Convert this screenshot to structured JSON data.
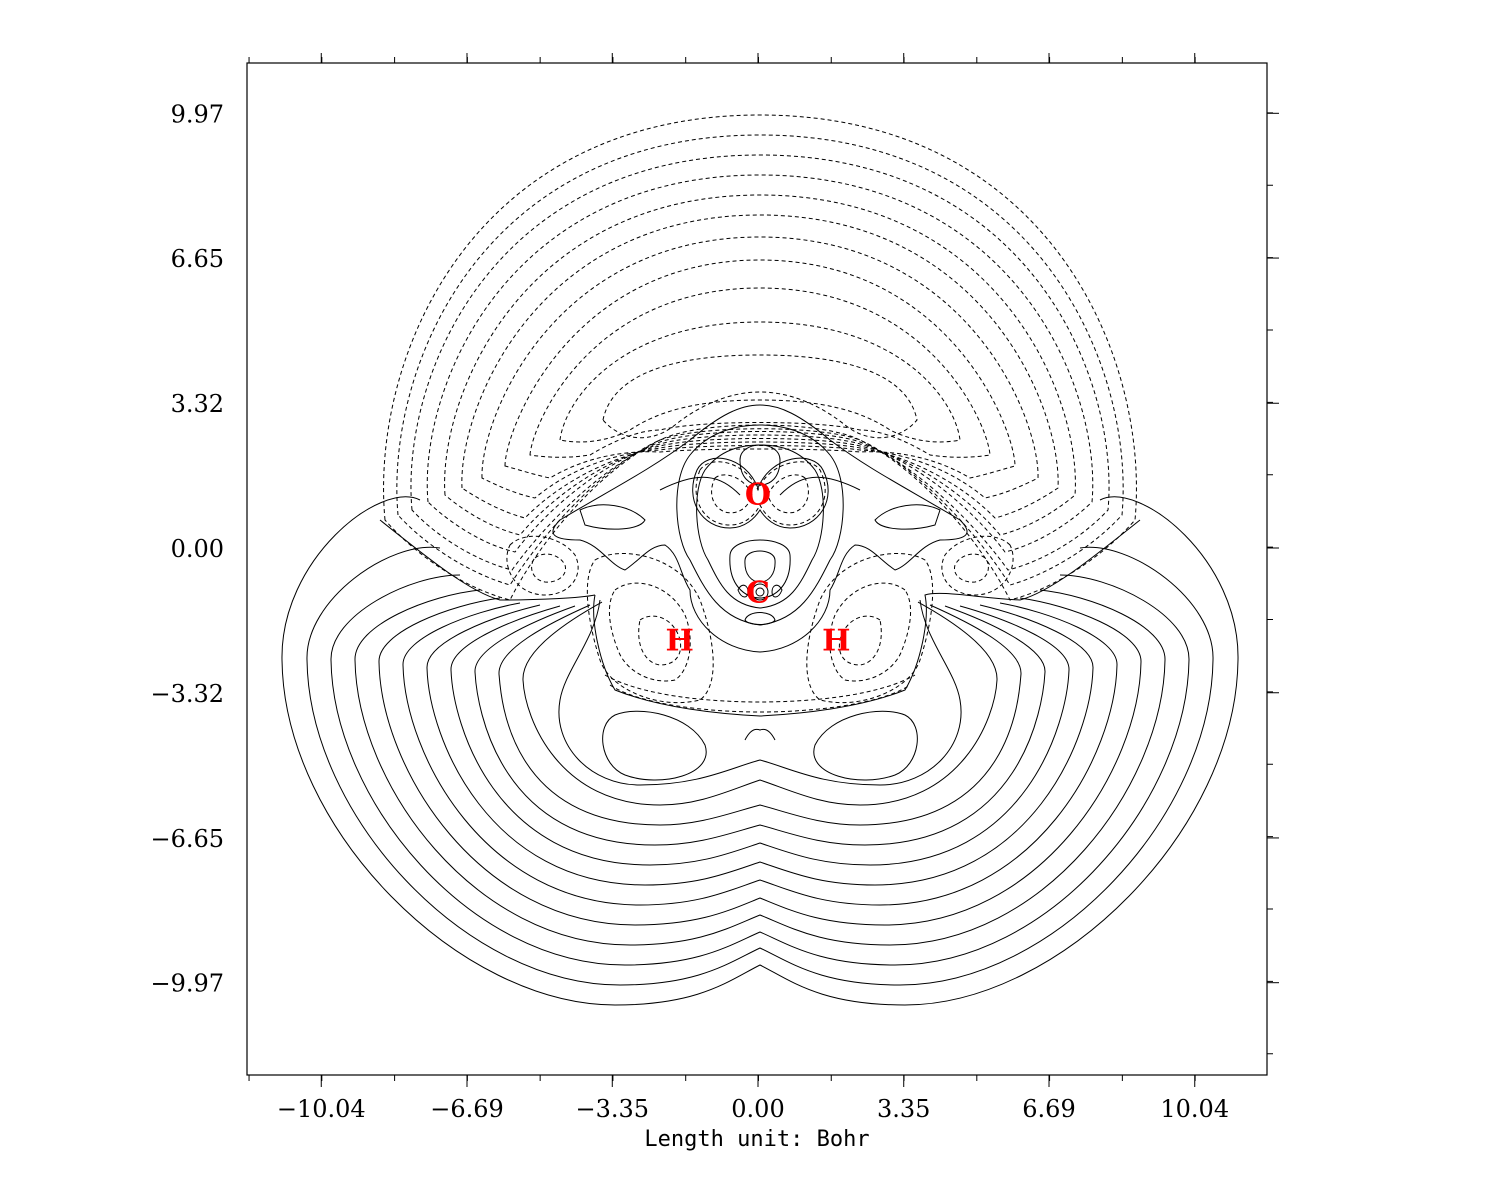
{
  "chart_data": {
    "type": "contour",
    "xlabel": "Length unit: Bohr",
    "ylabel": "",
    "title": "",
    "xlim": [
      -11.7,
      11.7
    ],
    "ylim": [
      -11.7,
      11.4
    ],
    "x_tick_labels": [
      "−10.04",
      "−6.69",
      "−3.35",
      "0.00",
      "3.35",
      "6.69",
      "10.04"
    ],
    "x_ticks": [
      -10.04,
      -6.69,
      -3.35,
      0.0,
      3.35,
      6.69,
      10.04
    ],
    "y_tick_labels": [
      "9.97",
      "6.65",
      "3.32",
      "0.00",
      "−3.32",
      "−6.65",
      "−9.97"
    ],
    "y_ticks": [
      9.97,
      6.65,
      3.32,
      0.0,
      -3.32,
      -6.65,
      -9.97
    ],
    "grid": false,
    "contour_styles": {
      "positive": "solid",
      "negative": "dashed"
    },
    "atoms": [
      {
        "label": "O",
        "x": 0.0,
        "y": 1.25
      },
      {
        "label": "C",
        "x": 0.0,
        "y": -1.0
      },
      {
        "label": "H",
        "x": -1.8,
        "y": -2.1
      },
      {
        "label": "H",
        "x": 1.8,
        "y": -2.1
      }
    ],
    "atom_color": "#ff0000"
  }
}
